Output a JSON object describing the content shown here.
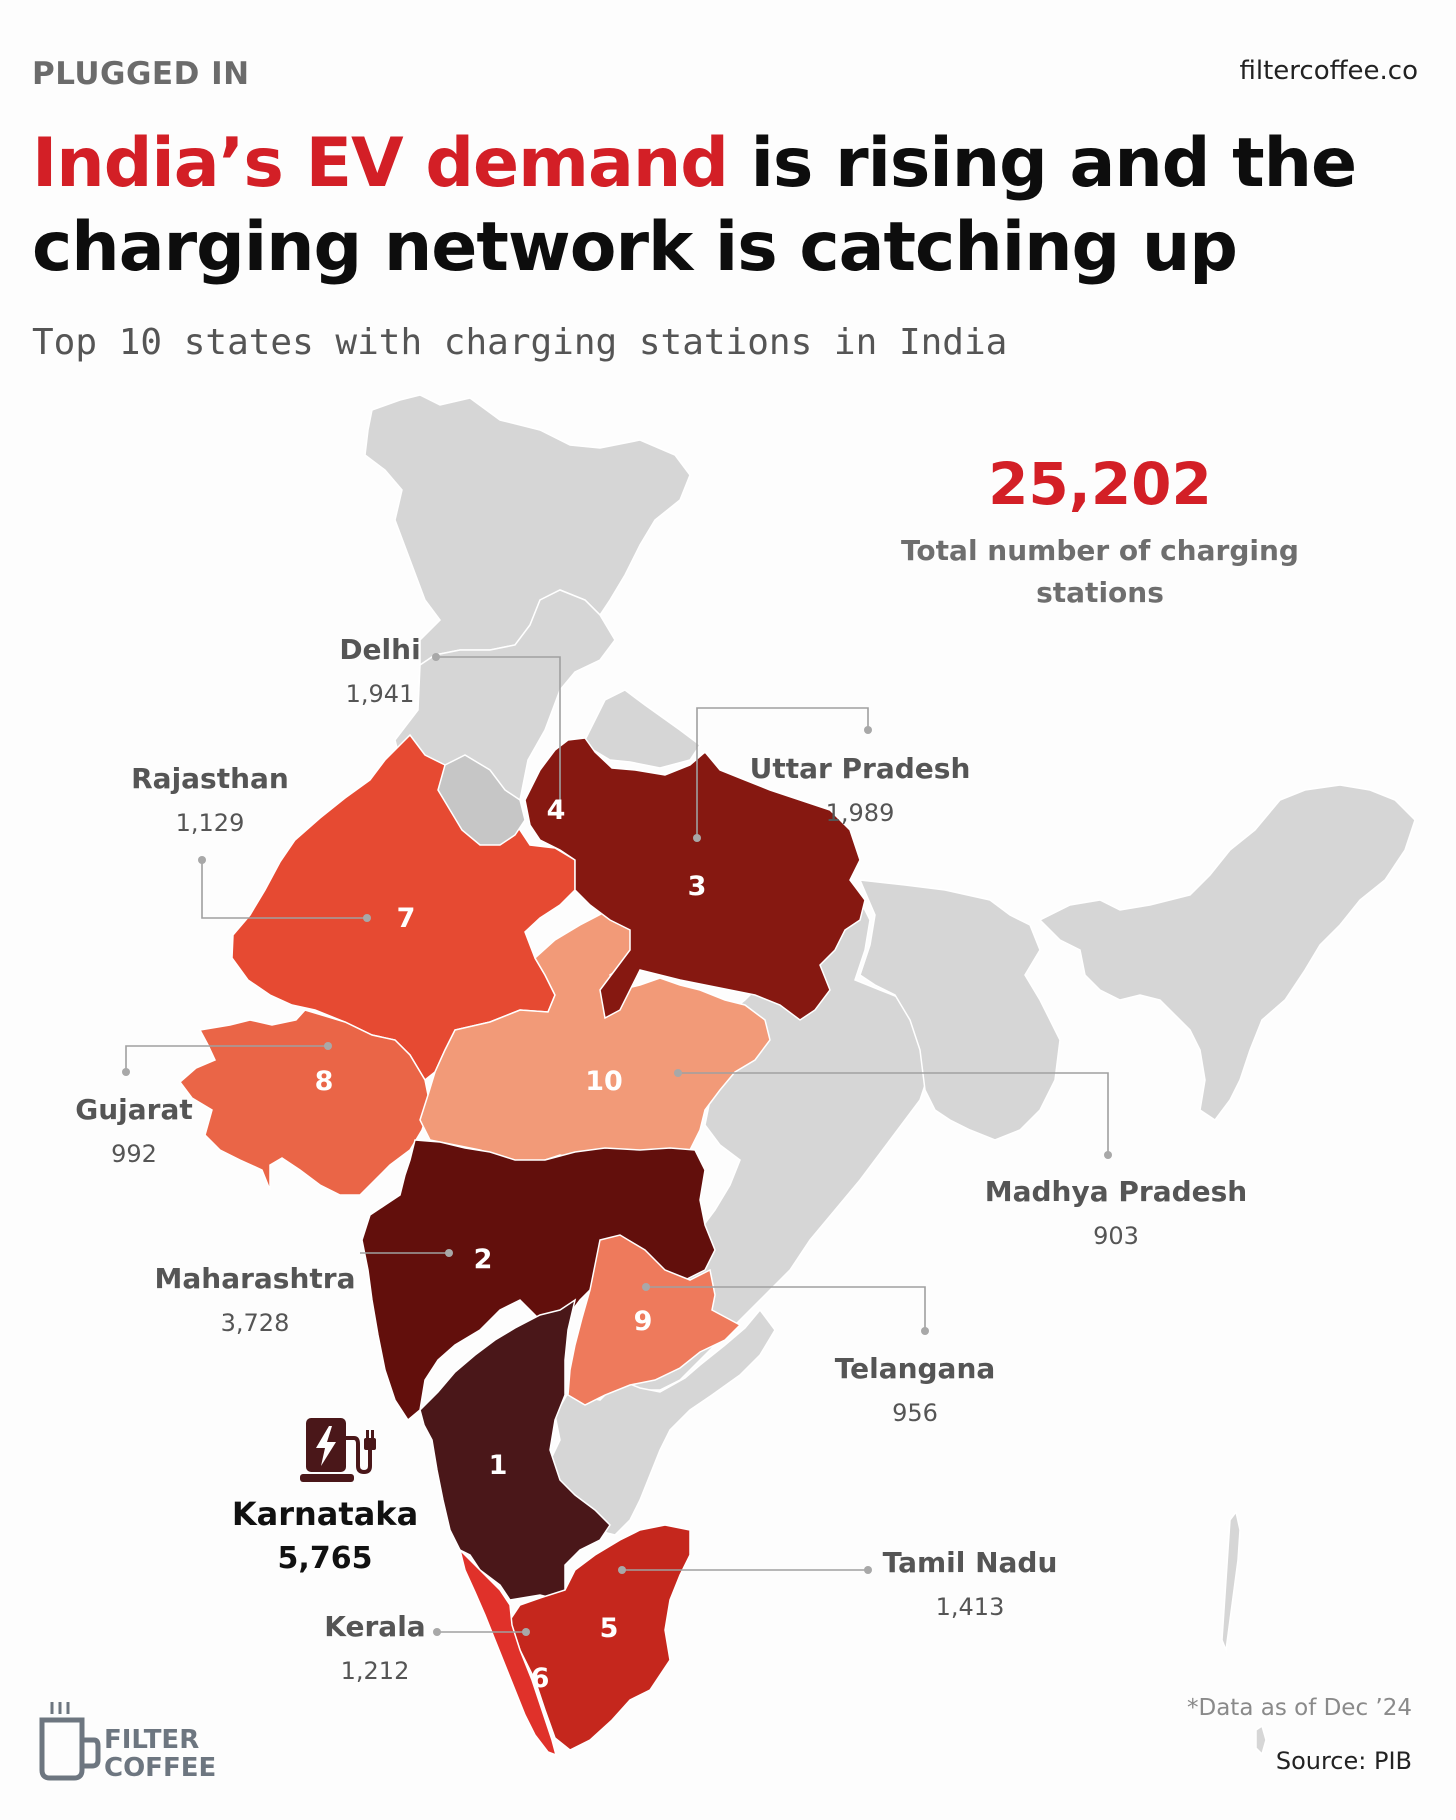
{
  "header": {
    "kicker": "PLUGGED IN",
    "site": "filtercoffee.co",
    "headline_accent": "India’s EV demand",
    "headline_rest": " is rising and the charging network is catching up",
    "subtitle": "Top 10 states with charging stations in India"
  },
  "total": {
    "value": "25,202",
    "caption": "Total number of charging stations"
  },
  "states": [
    {
      "rank": "1",
      "name": "Karnataka",
      "stations": "5,765",
      "stations_value": 5765,
      "color": "#4a1719",
      "highlight": true
    },
    {
      "rank": "2",
      "name": "Maharashtra",
      "stations": "3,728",
      "stations_value": 3728,
      "color": "#620f0c"
    },
    {
      "rank": "3",
      "name": "Uttar Pradesh",
      "stations": "1,989",
      "stations_value": 1989,
      "color": "#861811"
    },
    {
      "rank": "4",
      "name": "Delhi",
      "stations": "1,941",
      "stations_value": 1941,
      "color": "#c6c6c6"
    },
    {
      "rank": "5",
      "name": "Tamil Nadu",
      "stations": "1,413",
      "stations_value": 1413,
      "color": "#c5271d"
    },
    {
      "rank": "6",
      "name": "Kerala",
      "stations": "1,212",
      "stations_value": 1212,
      "color": "#e0312a"
    },
    {
      "rank": "7",
      "name": "Rajasthan",
      "stations": "1,129",
      "stations_value": 1129,
      "color": "#e64a32"
    },
    {
      "rank": "8",
      "name": "Gujarat",
      "stations": "992",
      "stations_value": 992,
      "color": "#ea6547"
    },
    {
      "rank": "9",
      "name": "Telangana",
      "stations": "956",
      "stations_value": 956,
      "color": "#ee7a5c"
    },
    {
      "rank": "10",
      "name": "Madhya Pradesh",
      "stations": "903",
      "stations_value": 903,
      "color": "#f29a78"
    }
  ],
  "other_region_color": "#d6d6d6",
  "icons": [
    "ev-charger-icon",
    "coffee-cup-icon"
  ],
  "footer": {
    "note": "*Data as of Dec ’24",
    "source": "Source: PIB",
    "brand_line1": "FILTER",
    "brand_line2": "COFFEE"
  }
}
